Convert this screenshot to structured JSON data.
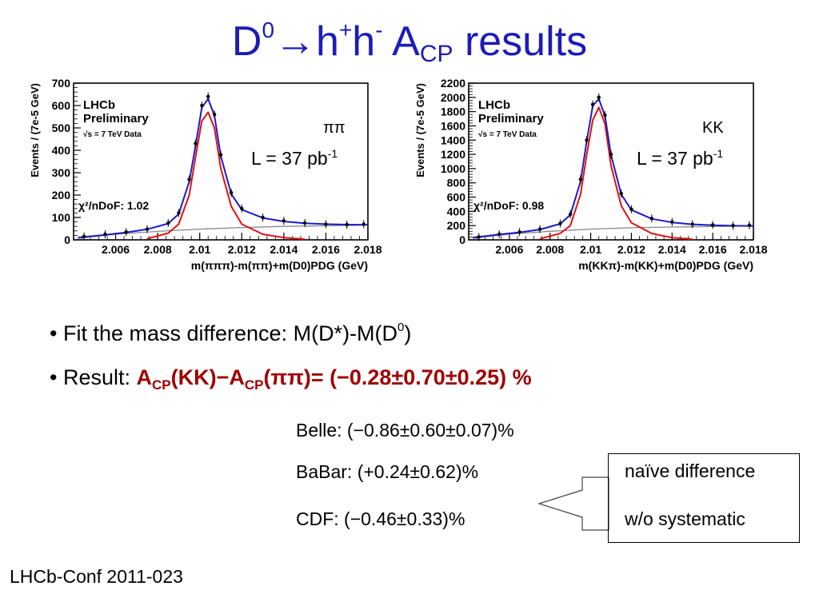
{
  "title": {
    "d_label": "D",
    "d_sup": "0",
    "arrow": "→",
    "h1": "h",
    "h1_sup": "+",
    "h2": "h",
    "h2_sup": "-",
    "a_label": " A",
    "a_sub": "CP",
    "rest": " results"
  },
  "chart_data": [
    {
      "type": "scatter",
      "title": "",
      "xlabel": "m(πππ)-m(ππ)+m(D0)PDG (GeV)",
      "ylabel": "Events / (7e-5 GeV)",
      "xlim": [
        2.004,
        2.018
      ],
      "ylim": [
        0,
        700
      ],
      "xticks": [
        "2.006",
        "2.008",
        "2.01",
        "2.012",
        "2.014",
        "2.016",
        "2.018"
      ],
      "yticks": [
        "0",
        "100",
        "200",
        "300",
        "400",
        "500",
        "600",
        "700"
      ],
      "annotations": [
        "LHCb",
        "Preliminary",
        "√s = 7 TeV Data",
        "χ²/nDoF: 1.02",
        "ππ",
        "L = 37 pb-1"
      ],
      "mode": "ππ",
      "chi2": "1.02",
      "series": [
        {
          "name": "data",
          "x": [
            2.0045,
            2.0055,
            2.0065,
            2.0075,
            2.0085,
            2.009,
            2.0095,
            2.0098,
            2.0101,
            2.0104,
            2.0107,
            2.011,
            2.0115,
            2.012,
            2.013,
            2.014,
            2.015,
            2.016,
            2.017,
            2.0178
          ],
          "y": [
            15,
            25,
            35,
            48,
            75,
            120,
            270,
            430,
            600,
            640,
            560,
            380,
            210,
            140,
            100,
            85,
            75,
            70,
            68,
            70
          ]
        },
        {
          "name": "total fit",
          "x": [
            2.0042,
            2.0055,
            2.0065,
            2.0075,
            2.0085,
            2.009,
            2.0095,
            2.0098,
            2.0101,
            2.0104,
            2.0107,
            2.011,
            2.0115,
            2.012,
            2.013,
            2.014,
            2.015,
            2.016,
            2.017,
            2.018
          ],
          "y": [
            10,
            22,
            33,
            47,
            73,
            115,
            260,
            420,
            590,
            630,
            555,
            375,
            205,
            135,
            98,
            82,
            74,
            70,
            68,
            67
          ]
        },
        {
          "name": "signal",
          "x": [
            2.0075,
            2.0085,
            2.009,
            2.0095,
            2.0098,
            2.0101,
            2.0104,
            2.0107,
            2.011,
            2.0115,
            2.012,
            2.013,
            2.014,
            2.015
          ],
          "y": [
            5,
            30,
            70,
            200,
            370,
            530,
            570,
            500,
            320,
            150,
            70,
            25,
            10,
            3
          ]
        },
        {
          "name": "background",
          "x": [
            2.0042,
            2.006,
            2.008,
            2.01,
            2.012,
            2.014,
            2.016,
            2.018
          ],
          "y": [
            8,
            25,
            38,
            48,
            55,
            60,
            63,
            66
          ]
        }
      ]
    },
    {
      "type": "scatter",
      "title": "",
      "xlabel": "m(KKπ)-m(KK)+m(D0)PDG (GeV)",
      "ylabel": "Events / (7e-5 GeV)",
      "xlim": [
        2.004,
        2.018
      ],
      "ylim": [
        0,
        2200
      ],
      "xticks": [
        "2.006",
        "2.008",
        "2.01",
        "2.012",
        "2.014",
        "2.016",
        "2.018"
      ],
      "yticks": [
        "0",
        "200",
        "400",
        "600",
        "800",
        "1000",
        "1200",
        "1400",
        "1600",
        "1800",
        "2000",
        "2200"
      ],
      "annotations": [
        "LHCb",
        "Preliminary",
        "√s = 7 TeV Data",
        "χ²/nDoF: 0.98",
        "KK",
        "L = 37 pb-1"
      ],
      "mode": "KK",
      "chi2": "0.98",
      "series": [
        {
          "name": "data",
          "x": [
            2.0045,
            2.0055,
            2.0065,
            2.0075,
            2.0085,
            2.009,
            2.0095,
            2.0098,
            2.0101,
            2.0104,
            2.0107,
            2.011,
            2.0115,
            2.012,
            2.013,
            2.014,
            2.015,
            2.016,
            2.017,
            2.0178
          ],
          "y": [
            40,
            80,
            110,
            150,
            230,
            360,
            850,
            1400,
            1900,
            2000,
            1750,
            1200,
            650,
            430,
            300,
            250,
            220,
            210,
            200,
            205
          ]
        },
        {
          "name": "total fit",
          "x": [
            2.0042,
            2.0055,
            2.0065,
            2.0075,
            2.0085,
            2.009,
            2.0095,
            2.0098,
            2.0101,
            2.0104,
            2.0107,
            2.011,
            2.0115,
            2.012,
            2.013,
            2.014,
            2.015,
            2.016,
            2.017,
            2.018
          ],
          "y": [
            30,
            75,
            105,
            145,
            225,
            350,
            820,
            1380,
            1880,
            1980,
            1740,
            1190,
            640,
            420,
            295,
            245,
            218,
            205,
            198,
            195
          ]
        },
        {
          "name": "signal",
          "x": [
            2.0075,
            2.0085,
            2.009,
            2.0095,
            2.0098,
            2.0101,
            2.0104,
            2.0107,
            2.011,
            2.0115,
            2.012,
            2.013,
            2.014,
            2.015
          ],
          "y": [
            15,
            90,
            200,
            640,
            1190,
            1680,
            1860,
            1630,
            1040,
            480,
            240,
            90,
            30,
            10
          ]
        },
        {
          "name": "background",
          "x": [
            2.0042,
            2.006,
            2.008,
            2.01,
            2.012,
            2.014,
            2.016,
            2.018
          ],
          "y": [
            25,
            80,
            120,
            150,
            170,
            180,
            188,
            195
          ]
        }
      ]
    }
  ],
  "plot_text": {
    "lhcb": "LHCb",
    "preliminary": "Preliminary",
    "energy": "√s = 7 TeV Data",
    "lumi_label": "L = 37 pb",
    "lumi_sup": "-1",
    "chi2_label": "χ²/nDoF: "
  },
  "bullets": {
    "b1_text": "• Fit the mass difference: M(D*)-M(D",
    "b1_sup": "0",
    "b1_close": ")",
    "b2_text": "• Result: ",
    "b2_a1": "A",
    "b2_cp1": "CP",
    "b2_kk": "(KK)−A",
    "b2_cp2": "CP",
    "b2_val": "(ππ)= (−0.28±0.70±0.25) %"
  },
  "comparisons": {
    "belle": "Belle: (−0.86±0.60±0.07)%",
    "babar": "BaBar: (+0.24±0.62)%",
    "cdf": "CDF: (−0.46±0.33)%"
  },
  "note": {
    "line1": "naïve difference",
    "line2": "w/o systematic"
  },
  "footer": "LHCb-Conf 2011-023",
  "colors": {
    "title": "#1c1cb8",
    "result": "#a00000",
    "fit_total": "#1a1ad0",
    "fit_signal": "#e01010",
    "background": "#888888"
  }
}
